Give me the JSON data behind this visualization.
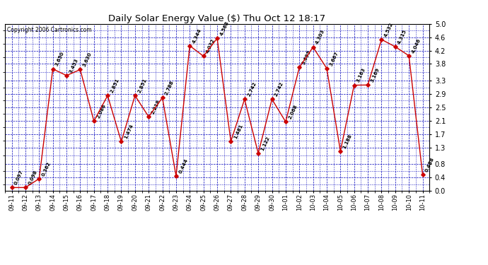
{
  "title": "Daily Solar Energy Value ($) Thu Oct 12 18:17",
  "copyright": "Copyright 2006 Cartronics.com",
  "x_labels": [
    "09-11",
    "09-12",
    "09-13",
    "09-14",
    "09-15",
    "09-16",
    "09-17",
    "09-18",
    "09-19",
    "09-20",
    "09-21",
    "09-22",
    "09-23",
    "09-24",
    "09-25",
    "09-26",
    "09-27",
    "09-28",
    "09-29",
    "09-30",
    "10-01",
    "10-02",
    "10-03",
    "10-04",
    "10-05",
    "10-06",
    "10-07",
    "10-08",
    "10-09",
    "10-10",
    "10-11"
  ],
  "values": [
    0.097,
    0.098,
    0.362,
    3.65,
    3.453,
    3.63,
    2.088,
    2.851,
    1.474,
    2.851,
    2.218,
    2.788,
    0.444,
    4.344,
    4.032,
    4.568,
    1.481,
    2.742,
    1.122,
    2.742,
    2.068,
    3.695,
    4.303,
    3.667,
    1.188,
    3.163,
    3.169,
    4.532,
    4.315,
    4.046,
    0.488
  ],
  "point_labels": [
    "0.097",
    "0.098",
    "0.362",
    "3.650",
    "3.453",
    "3.630",
    "2.088",
    "2.851",
    "1.474",
    "2.851",
    "2.218",
    "2.788",
    "0.444",
    "4.344",
    "4.032",
    "4.568",
    "1.481",
    "2.742",
    "1.122",
    "2.742",
    "2.068",
    "3.695",
    "4.303",
    "3.667",
    "1.188",
    "3.163",
    "3.169",
    "4.532",
    "4.315",
    "4.046",
    "0.488"
  ],
  "ylim": [
    0.0,
    5.0
  ],
  "yticks": [
    0.0,
    0.4,
    0.8,
    1.3,
    1.7,
    2.1,
    2.5,
    2.9,
    3.3,
    3.8,
    4.2,
    4.6,
    5.0
  ],
  "line_color": "#cc0000",
  "marker_color": "#cc0000",
  "bg_color": "#ffffff",
  "grid_color": "#0000bb",
  "title_color": "#000000",
  "figwidth": 6.9,
  "figheight": 3.75,
  "dpi": 100
}
